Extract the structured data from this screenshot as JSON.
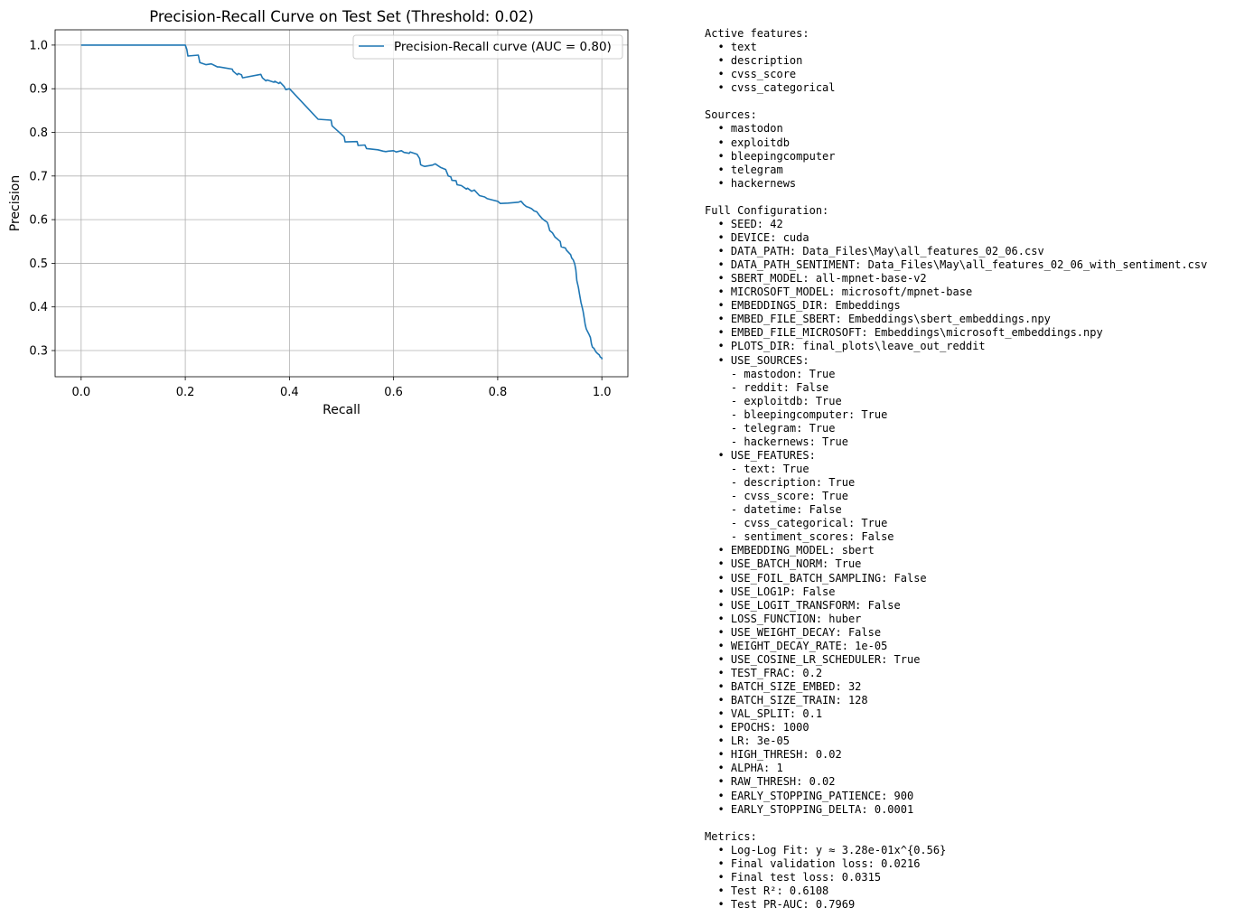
{
  "chart_data": {
    "type": "line",
    "title": "Precision-Recall Curve on Test Set (Threshold: 0.02)",
    "xlabel": "Recall",
    "ylabel": "Precision",
    "xlim": [
      -0.05,
      1.05
    ],
    "ylim": [
      0.24,
      1.035
    ],
    "xticks": [
      "0.0",
      "0.2",
      "0.4",
      "0.6",
      "0.8",
      "1.0"
    ],
    "yticks": [
      "0.3",
      "0.4",
      "0.5",
      "0.6",
      "0.7",
      "0.8",
      "0.9",
      "1.0"
    ],
    "grid": true,
    "legend_placement": "top-right",
    "line_color": "#1f77b4",
    "series": [
      {
        "name": "Precision-Recall curve (AUC = 0.80)",
        "x": [
          0.0,
          0.2,
          0.203,
          0.205,
          0.225,
          0.228,
          0.24,
          0.25,
          0.262,
          0.265,
          0.29,
          0.292,
          0.3,
          0.302,
          0.308,
          0.31,
          0.345,
          0.348,
          0.355,
          0.357,
          0.37,
          0.372,
          0.38,
          0.382,
          0.39,
          0.393,
          0.4,
          0.455,
          0.48,
          0.482,
          0.505,
          0.507,
          0.53,
          0.532,
          0.545,
          0.548,
          0.57,
          0.58,
          0.585,
          0.59,
          0.6,
          0.605,
          0.615,
          0.62,
          0.63,
          0.632,
          0.645,
          0.65,
          0.652,
          0.655,
          0.66,
          0.675,
          0.678,
          0.68,
          0.69,
          0.7,
          0.705,
          0.71,
          0.712,
          0.72,
          0.722,
          0.73,
          0.74,
          0.742,
          0.75,
          0.755,
          0.765,
          0.775,
          0.78,
          0.79,
          0.8,
          0.805,
          0.82,
          0.84,
          0.845,
          0.85,
          0.855,
          0.86,
          0.865,
          0.87,
          0.875,
          0.88,
          0.885,
          0.89,
          0.895,
          0.897,
          0.9,
          0.905,
          0.91,
          0.912,
          0.915,
          0.92,
          0.922,
          0.93,
          0.932,
          0.94,
          0.942,
          0.945,
          0.948,
          0.95,
          0.952,
          0.955,
          0.957,
          0.96,
          0.962,
          0.964,
          0.966,
          0.968,
          0.97,
          0.972,
          0.975,
          0.978,
          0.98,
          0.982,
          0.985,
          0.988,
          0.99,
          0.993,
          0.995,
          0.997,
          1.0,
          1.0
        ],
        "y": [
          1.0,
          1.0,
          0.99,
          0.975,
          0.977,
          0.96,
          0.955,
          0.957,
          0.95,
          0.95,
          0.945,
          0.94,
          0.932,
          0.935,
          0.932,
          0.925,
          0.933,
          0.925,
          0.918,
          0.92,
          0.915,
          0.917,
          0.912,
          0.915,
          0.905,
          0.898,
          0.9,
          0.83,
          0.828,
          0.815,
          0.79,
          0.778,
          0.779,
          0.77,
          0.771,
          0.763,
          0.76,
          0.757,
          0.756,
          0.757,
          0.758,
          0.755,
          0.758,
          0.754,
          0.752,
          0.755,
          0.75,
          0.74,
          0.726,
          0.724,
          0.722,
          0.725,
          0.727,
          0.728,
          0.72,
          0.715,
          0.7,
          0.698,
          0.69,
          0.689,
          0.68,
          0.678,
          0.67,
          0.672,
          0.665,
          0.668,
          0.655,
          0.652,
          0.648,
          0.645,
          0.642,
          0.637,
          0.638,
          0.64,
          0.642,
          0.635,
          0.63,
          0.628,
          0.625,
          0.62,
          0.618,
          0.61,
          0.603,
          0.598,
          0.594,
          0.588,
          0.575,
          0.57,
          0.56,
          0.558,
          0.555,
          0.55,
          0.538,
          0.535,
          0.53,
          0.52,
          0.512,
          0.508,
          0.498,
          0.485,
          0.46,
          0.445,
          0.43,
          0.41,
          0.4,
          0.39,
          0.375,
          0.36,
          0.35,
          0.345,
          0.338,
          0.33,
          0.315,
          0.308,
          0.305,
          0.298,
          0.295,
          0.292,
          0.29,
          0.285,
          0.283,
          0.28
        ]
      }
    ]
  },
  "config_text": [
    "Active features:",
    "  • text",
    "  • description",
    "  • cvss_score",
    "  • cvss_categorical",
    "",
    "Sources:",
    "  • mastodon",
    "  • exploitdb",
    "  • bleepingcomputer",
    "  • telegram",
    "  • hackernews",
    "",
    "Full Configuration:",
    "  • SEED: 42",
    "  • DEVICE: cuda",
    "  • DATA_PATH: Data_Files\\May\\all_features_02_06.csv",
    "  • DATA_PATH_SENTIMENT: Data_Files\\May\\all_features_02_06_with_sentiment.csv",
    "  • SBERT_MODEL: all-mpnet-base-v2",
    "  • MICROSOFT_MODEL: microsoft/mpnet-base",
    "  • EMBEDDINGS_DIR: Embeddings",
    "  • EMBED_FILE_SBERT: Embeddings\\sbert_embeddings.npy",
    "  • EMBED_FILE_MICROSOFT: Embeddings\\microsoft_embeddings.npy",
    "  • PLOTS_DIR: final_plots\\leave_out_reddit",
    "  • USE_SOURCES:",
    "    - mastodon: True",
    "    - reddit: False",
    "    - exploitdb: True",
    "    - bleepingcomputer: True",
    "    - telegram: True",
    "    - hackernews: True",
    "  • USE_FEATURES:",
    "    - text: True",
    "    - description: True",
    "    - cvss_score: True",
    "    - datetime: False",
    "    - cvss_categorical: True",
    "    - sentiment_scores: False",
    "  • EMBEDDING_MODEL: sbert",
    "  • USE_BATCH_NORM: True",
    "  • USE_FOIL_BATCH_SAMPLING: False",
    "  • USE_LOG1P: False",
    "  • USE_LOGIT_TRANSFORM: False",
    "  • LOSS_FUNCTION: huber",
    "  • USE_WEIGHT_DECAY: False",
    "  • WEIGHT_DECAY_RATE: 1e-05",
    "  • USE_COSINE_LR_SCHEDULER: True",
    "  • TEST_FRAC: 0.2",
    "  • BATCH_SIZE_EMBED: 32",
    "  • BATCH_SIZE_TRAIN: 128",
    "  • VAL_SPLIT: 0.1",
    "  • EPOCHS: 1000",
    "  • LR: 3e-05",
    "  • HIGH_THRESH: 0.02",
    "  • ALPHA: 1",
    "  • RAW_THRESH: 0.02",
    "  • EARLY_STOPPING_PATIENCE: 900",
    "  • EARLY_STOPPING_DELTA: 0.0001",
    "",
    "Metrics:",
    "  • Log-Log Fit: y ≈ 3.28e-01x^{0.56}",
    "  • Final validation loss: 0.0216",
    "  • Final test loss: 0.0315",
    "  • Test R²: 0.6108",
    "  • Test PR-AUC: 0.7969"
  ]
}
